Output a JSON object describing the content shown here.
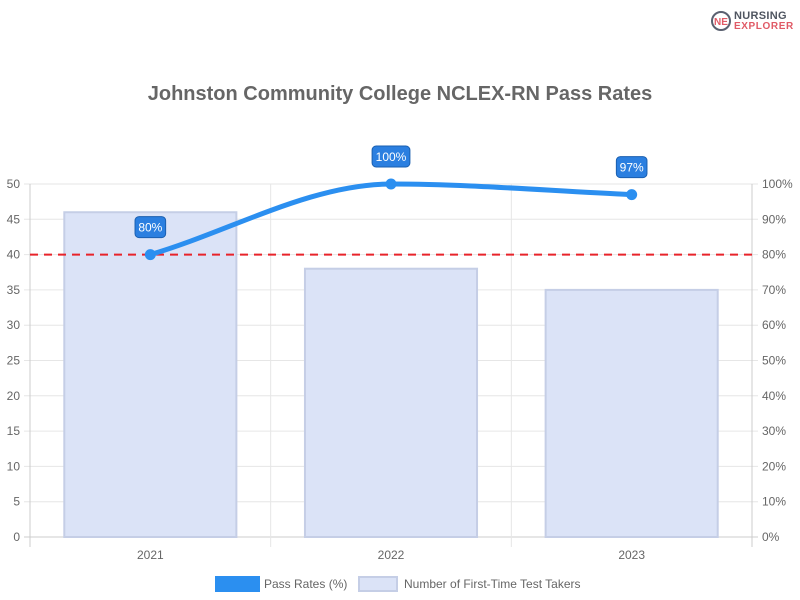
{
  "brand": {
    "line1": "NURSING",
    "line2": "EXPLORER",
    "badge": "NE"
  },
  "chart_data": {
    "type": "bar",
    "title": "Johnston Community College NCLEX-RN Pass Rates",
    "categories": [
      "2021",
      "2022",
      "2023"
    ],
    "series": [
      {
        "name": "Pass Rates (%)",
        "type": "line",
        "axis": "right",
        "values": [
          80,
          100,
          97
        ],
        "data_labels": [
          "80%",
          "100%",
          "97%"
        ],
        "color": "#2b8ff0"
      },
      {
        "name": "Number of First-Time Test Takers",
        "type": "bar",
        "axis": "left",
        "values": [
          46,
          38,
          35
        ],
        "color": "#dbe3f7",
        "border_color": "#c5cee6"
      }
    ],
    "y_left": {
      "min": 0,
      "max": 50,
      "ticks": [
        "0",
        "5",
        "10",
        "15",
        "20",
        "25",
        "30",
        "35",
        "40",
        "45",
        "50"
      ]
    },
    "y_right": {
      "min": 0,
      "max": 100,
      "ticks": [
        "0%",
        "10%",
        "20%",
        "30%",
        "40%",
        "50%",
        "60%",
        "70%",
        "80%",
        "90%",
        "100%"
      ]
    },
    "reference_line": {
      "value": 80,
      "axis": "right",
      "style": "dashed",
      "color": "#e8232a"
    },
    "grid": true,
    "legend_position": "bottom"
  }
}
